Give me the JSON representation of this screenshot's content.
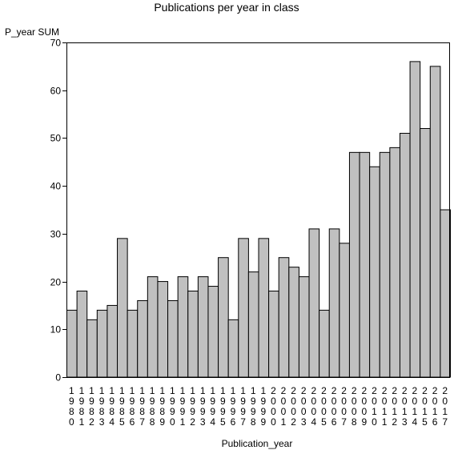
{
  "chart_data": {
    "type": "bar",
    "title": "Publications per year in class",
    "ylabel": "P_year SUM",
    "xlabel": "Publication_year",
    "ylim": [
      0,
      70
    ],
    "yticks": [
      0,
      10,
      20,
      30,
      40,
      50,
      60,
      70
    ],
    "grid": false,
    "categories": [
      "1980",
      "1981",
      "1982",
      "1983",
      "1984",
      "1985",
      "1986",
      "1987",
      "1988",
      "1989",
      "1990",
      "1991",
      "1992",
      "1993",
      "1994",
      "1995",
      "1996",
      "1997",
      "1998",
      "1999",
      "2000",
      "2001",
      "2002",
      "2003",
      "2004",
      "2005",
      "2006",
      "2007",
      "2008",
      "2009",
      "2010",
      "2011",
      "2012",
      "2013",
      "2014",
      "2015",
      "2016",
      "2017"
    ],
    "values": [
      14,
      18,
      12,
      14,
      15,
      29,
      14,
      16,
      21,
      20,
      16,
      21,
      18,
      21,
      19,
      25,
      12,
      29,
      22,
      29,
      18,
      25,
      23,
      21,
      31,
      14,
      31,
      28,
      47,
      47,
      44,
      47,
      48,
      51,
      66,
      52,
      65,
      35
    ],
    "bar_color": "#c0c0c0",
    "edge_color": "#000000"
  }
}
